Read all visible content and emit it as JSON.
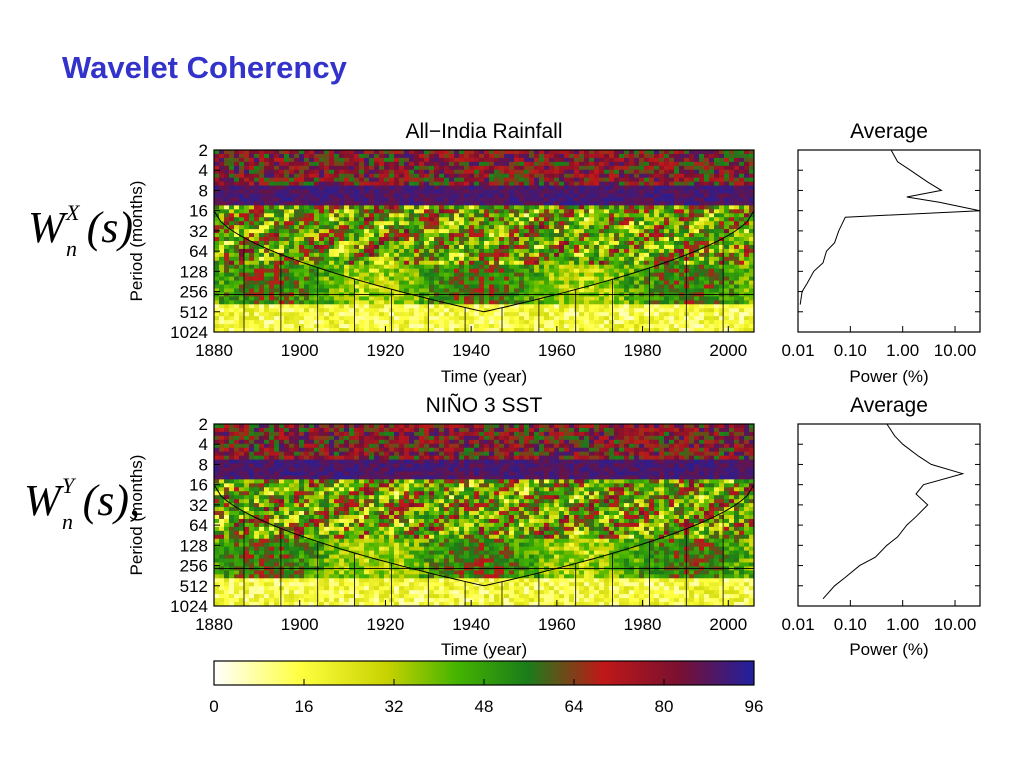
{
  "slide": {
    "title": "Wavelet Coherency"
  },
  "formulas": [
    {
      "base": "W",
      "sub": "n",
      "sup": "X",
      "arg": "(s)"
    },
    {
      "base": "W",
      "sub": "n",
      "sup": "Y",
      "arg": "(s),"
    }
  ],
  "colors": {
    "title": "#3333cc",
    "colormap": [
      "#ffffff",
      "#ffff40",
      "#c8d200",
      "#44b400",
      "#1a7d1a",
      "#c01818",
      "#7a1030",
      "#2020a0"
    ]
  },
  "chart_data": [
    {
      "type": "heatmap",
      "title": "All−India Rainfall",
      "xlabel": "Time (year)",
      "ylabel": "Period (months)",
      "xlim": [
        1880,
        2006
      ],
      "ylim": [
        2,
        1024
      ],
      "yscale": "log2",
      "xticks": [
        "1880",
        "1900",
        "1920",
        "1940",
        "1960",
        "1980",
        "2000"
      ],
      "yticks": [
        "2",
        "4",
        "8",
        "16",
        "32",
        "64",
        "128",
        "256",
        "512",
        "1024"
      ],
      "cone_of_influence": true
    },
    {
      "type": "line",
      "title": "Average",
      "xlabel": "Power (%)",
      "xscale": "log",
      "xlim": [
        0.01,
        30
      ],
      "xticks": [
        "0.01",
        "0.10",
        "1.00",
        "10.00"
      ],
      "x": [
        0.6,
        0.8,
        1.4,
        3.0,
        5.5,
        1.2,
        5.0,
        35.0,
        0.08,
        0.06,
        0.05,
        0.035,
        0.03,
        0.02,
        0.015,
        0.012,
        0.011
      ],
      "y": [
        2,
        3,
        4,
        6,
        8,
        10,
        12,
        16,
        20,
        32,
        48,
        64,
        96,
        128,
        192,
        256,
        400
      ]
    },
    {
      "type": "heatmap",
      "title": "NIÑO 3 SST",
      "xlabel": "Time (year)",
      "ylabel": "Period (months)",
      "xlim": [
        1880,
        2006
      ],
      "ylim": [
        2,
        1024
      ],
      "yscale": "log2",
      "xticks": [
        "1880",
        "1900",
        "1920",
        "1940",
        "1960",
        "1980",
        "2000"
      ],
      "yticks": [
        "2",
        "4",
        "8",
        "16",
        "32",
        "64",
        "128",
        "256",
        "512",
        "1024"
      ],
      "cone_of_influence": true
    },
    {
      "type": "line",
      "title": "Average",
      "xlabel": "Power (%)",
      "xscale": "log",
      "xlim": [
        0.01,
        30
      ],
      "xticks": [
        "0.01",
        "0.10",
        "1.00",
        "10.00"
      ],
      "x": [
        0.5,
        0.7,
        1.0,
        2.0,
        3.5,
        14.0,
        2.5,
        1.8,
        3.0,
        1.8,
        1.2,
        0.8,
        0.5,
        0.3,
        0.15,
        0.08,
        0.05,
        0.03
      ],
      "y": [
        2,
        3,
        4,
        6,
        8,
        11,
        16,
        22,
        32,
        48,
        64,
        96,
        128,
        192,
        256,
        384,
        512,
        800
      ]
    },
    {
      "type": "colorbar",
      "ticks": [
        "0",
        "16",
        "32",
        "48",
        "64",
        "80",
        "96"
      ],
      "range": [
        0,
        96
      ]
    }
  ]
}
